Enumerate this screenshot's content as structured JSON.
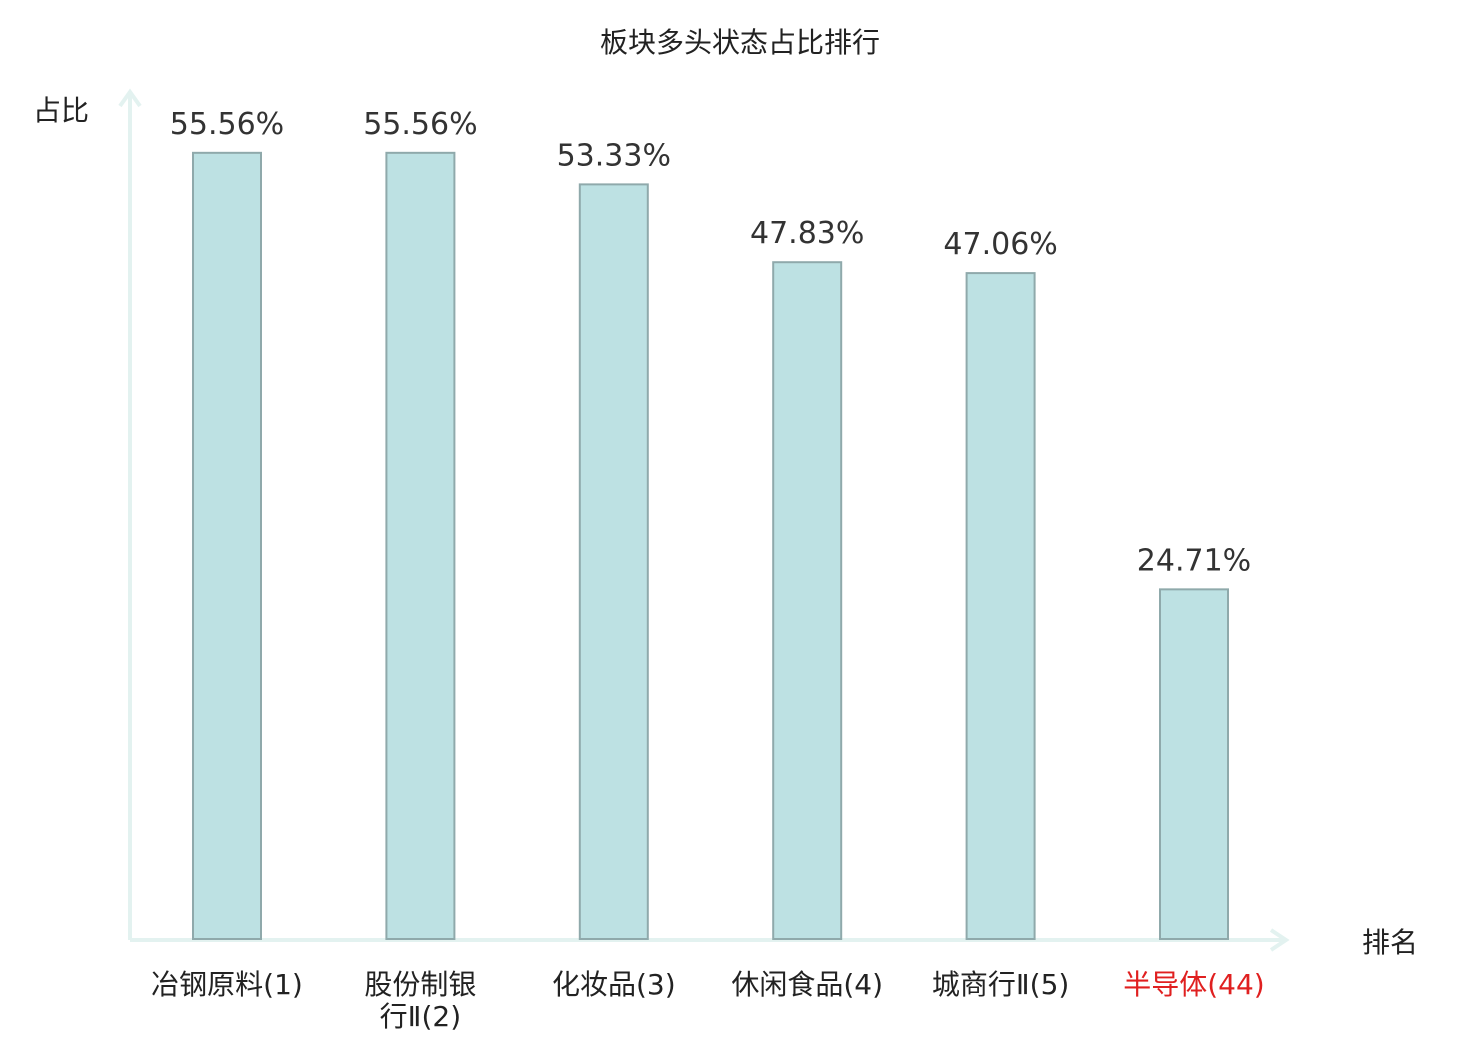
{
  "chart_data": {
    "type": "bar",
    "title": "板块多头状态占比排行",
    "ylabel": "占比",
    "xlabel": "排名",
    "ylim": [
      0,
      60
    ],
    "grid": false,
    "highlight_color": "#e02020",
    "bar_color": "#bde1e3",
    "categories": [
      {
        "lines": [
          "冶钢原料(1)"
        ],
        "highlight": false
      },
      {
        "lines": [
          "股份制银",
          "行Ⅱ(2)"
        ],
        "highlight": false
      },
      {
        "lines": [
          "化妆品(3)"
        ],
        "highlight": false
      },
      {
        "lines": [
          "休闲食品(4)"
        ],
        "highlight": false
      },
      {
        "lines": [
          "城商行Ⅱ(5)"
        ],
        "highlight": false
      },
      {
        "lines": [
          "半导体(44)"
        ],
        "highlight": true
      }
    ],
    "values": [
      55.56,
      55.56,
      53.33,
      47.83,
      47.06,
      24.71
    ],
    "value_labels": [
      "55.56%",
      "55.56%",
      "53.33%",
      "47.83%",
      "47.06%",
      "24.71%"
    ]
  }
}
